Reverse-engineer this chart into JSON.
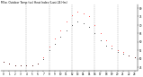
{
  "title": "Milw. Outdoor Temp (vs) Heat Index (Last 24 Hrs)",
  "hours": [
    0,
    1,
    2,
    3,
    4,
    5,
    6,
    7,
    8,
    9,
    10,
    11,
    12,
    13,
    14,
    15,
    16,
    17,
    18,
    19,
    20,
    21,
    22,
    23
  ],
  "temp": [
    48,
    47,
    46,
    46,
    46,
    46,
    47,
    50,
    55,
    59,
    63,
    67,
    70,
    72,
    71,
    69,
    65,
    61,
    58,
    56,
    54,
    53,
    52,
    51
  ],
  "heat_index": [
    48,
    47,
    46,
    46,
    46,
    46,
    47,
    51,
    57,
    62,
    67,
    72,
    76,
    78,
    77,
    75,
    70,
    65,
    61,
    58,
    55,
    54,
    52,
    51
  ],
  "ylim": [
    43,
    82
  ],
  "ytick_vals": [
    45,
    50,
    55,
    60,
    65,
    70,
    75,
    80
  ],
  "ytick_labels": [
    "45",
    "50",
    "55",
    "60",
    "65",
    "70",
    "75",
    "80"
  ],
  "bg_color": "#ffffff",
  "temp_color": "#000000",
  "heat_color": "#ff0000",
  "grid_color": "#888888",
  "title_color": "#000000",
  "spine_color": "#000000"
}
